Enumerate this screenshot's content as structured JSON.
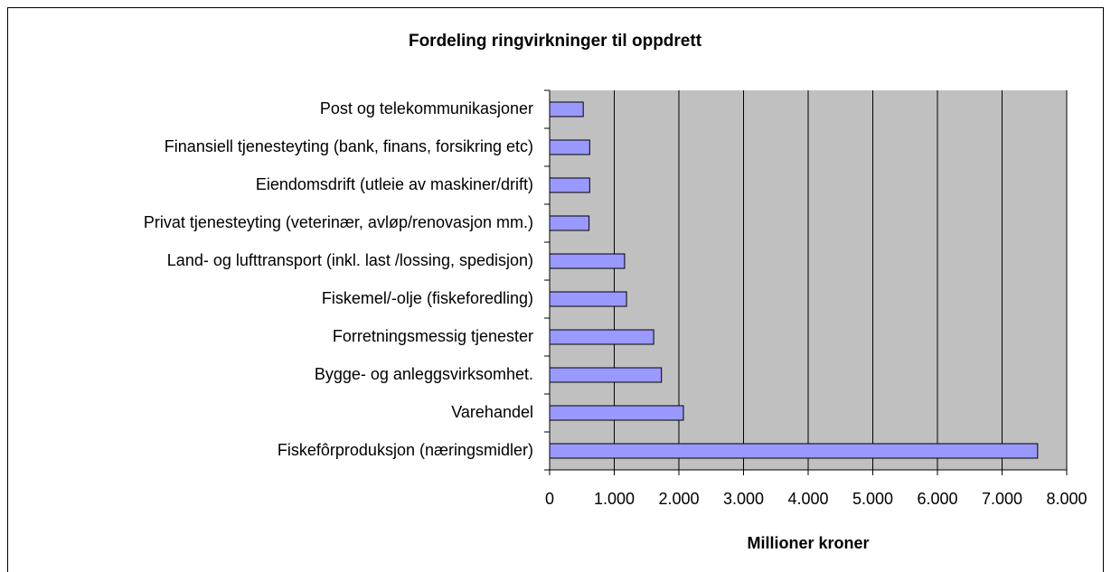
{
  "chart_data": {
    "type": "bar",
    "orientation": "horizontal",
    "title": "Fordeling ringvirkninger til oppdrett",
    "x_label": "Millioner kroner",
    "categories": [
      "Post og telekommunikasjoner",
      "Finansiell tjenesteyting (bank, finans, forsikring etc)",
      "Eiendomsdrift (utleie av maskiner/drift)",
      "Privat tjenesteyting (veterinær, avløp/renovasjon mm.)",
      "Land- og lufttransport (inkl. last /lossing, spedisjon)",
      "Fiskemel/-olje (fiskeforedling)",
      "Forretningsmessig tjenester",
      "Bygge- og anleggsvirksomhet.",
      "Varehandel",
      "Fiskefôrproduksjon (næringsmidler)"
    ],
    "values": [
      520,
      620,
      620,
      610,
      1160,
      1190,
      1610,
      1730,
      2070,
      7550
    ],
    "color": "#9999ff",
    "xlim": [
      0,
      8000
    ],
    "xticks": [
      0,
      {
        "value": 1000,
        "label": "1.000"
      },
      {
        "value": 2000,
        "label": "2.000"
      },
      {
        "value": 3000,
        "label": "3.000"
      },
      {
        "value": 4000,
        "label": "4.000"
      },
      {
        "value": 5000,
        "label": "5.000"
      },
      {
        "value": 6000,
        "label": "6.000"
      },
      {
        "value": 7000,
        "label": "7.000"
      },
      {
        "value": 8000,
        "label": "8.000"
      }
    ],
    "grid": true
  }
}
